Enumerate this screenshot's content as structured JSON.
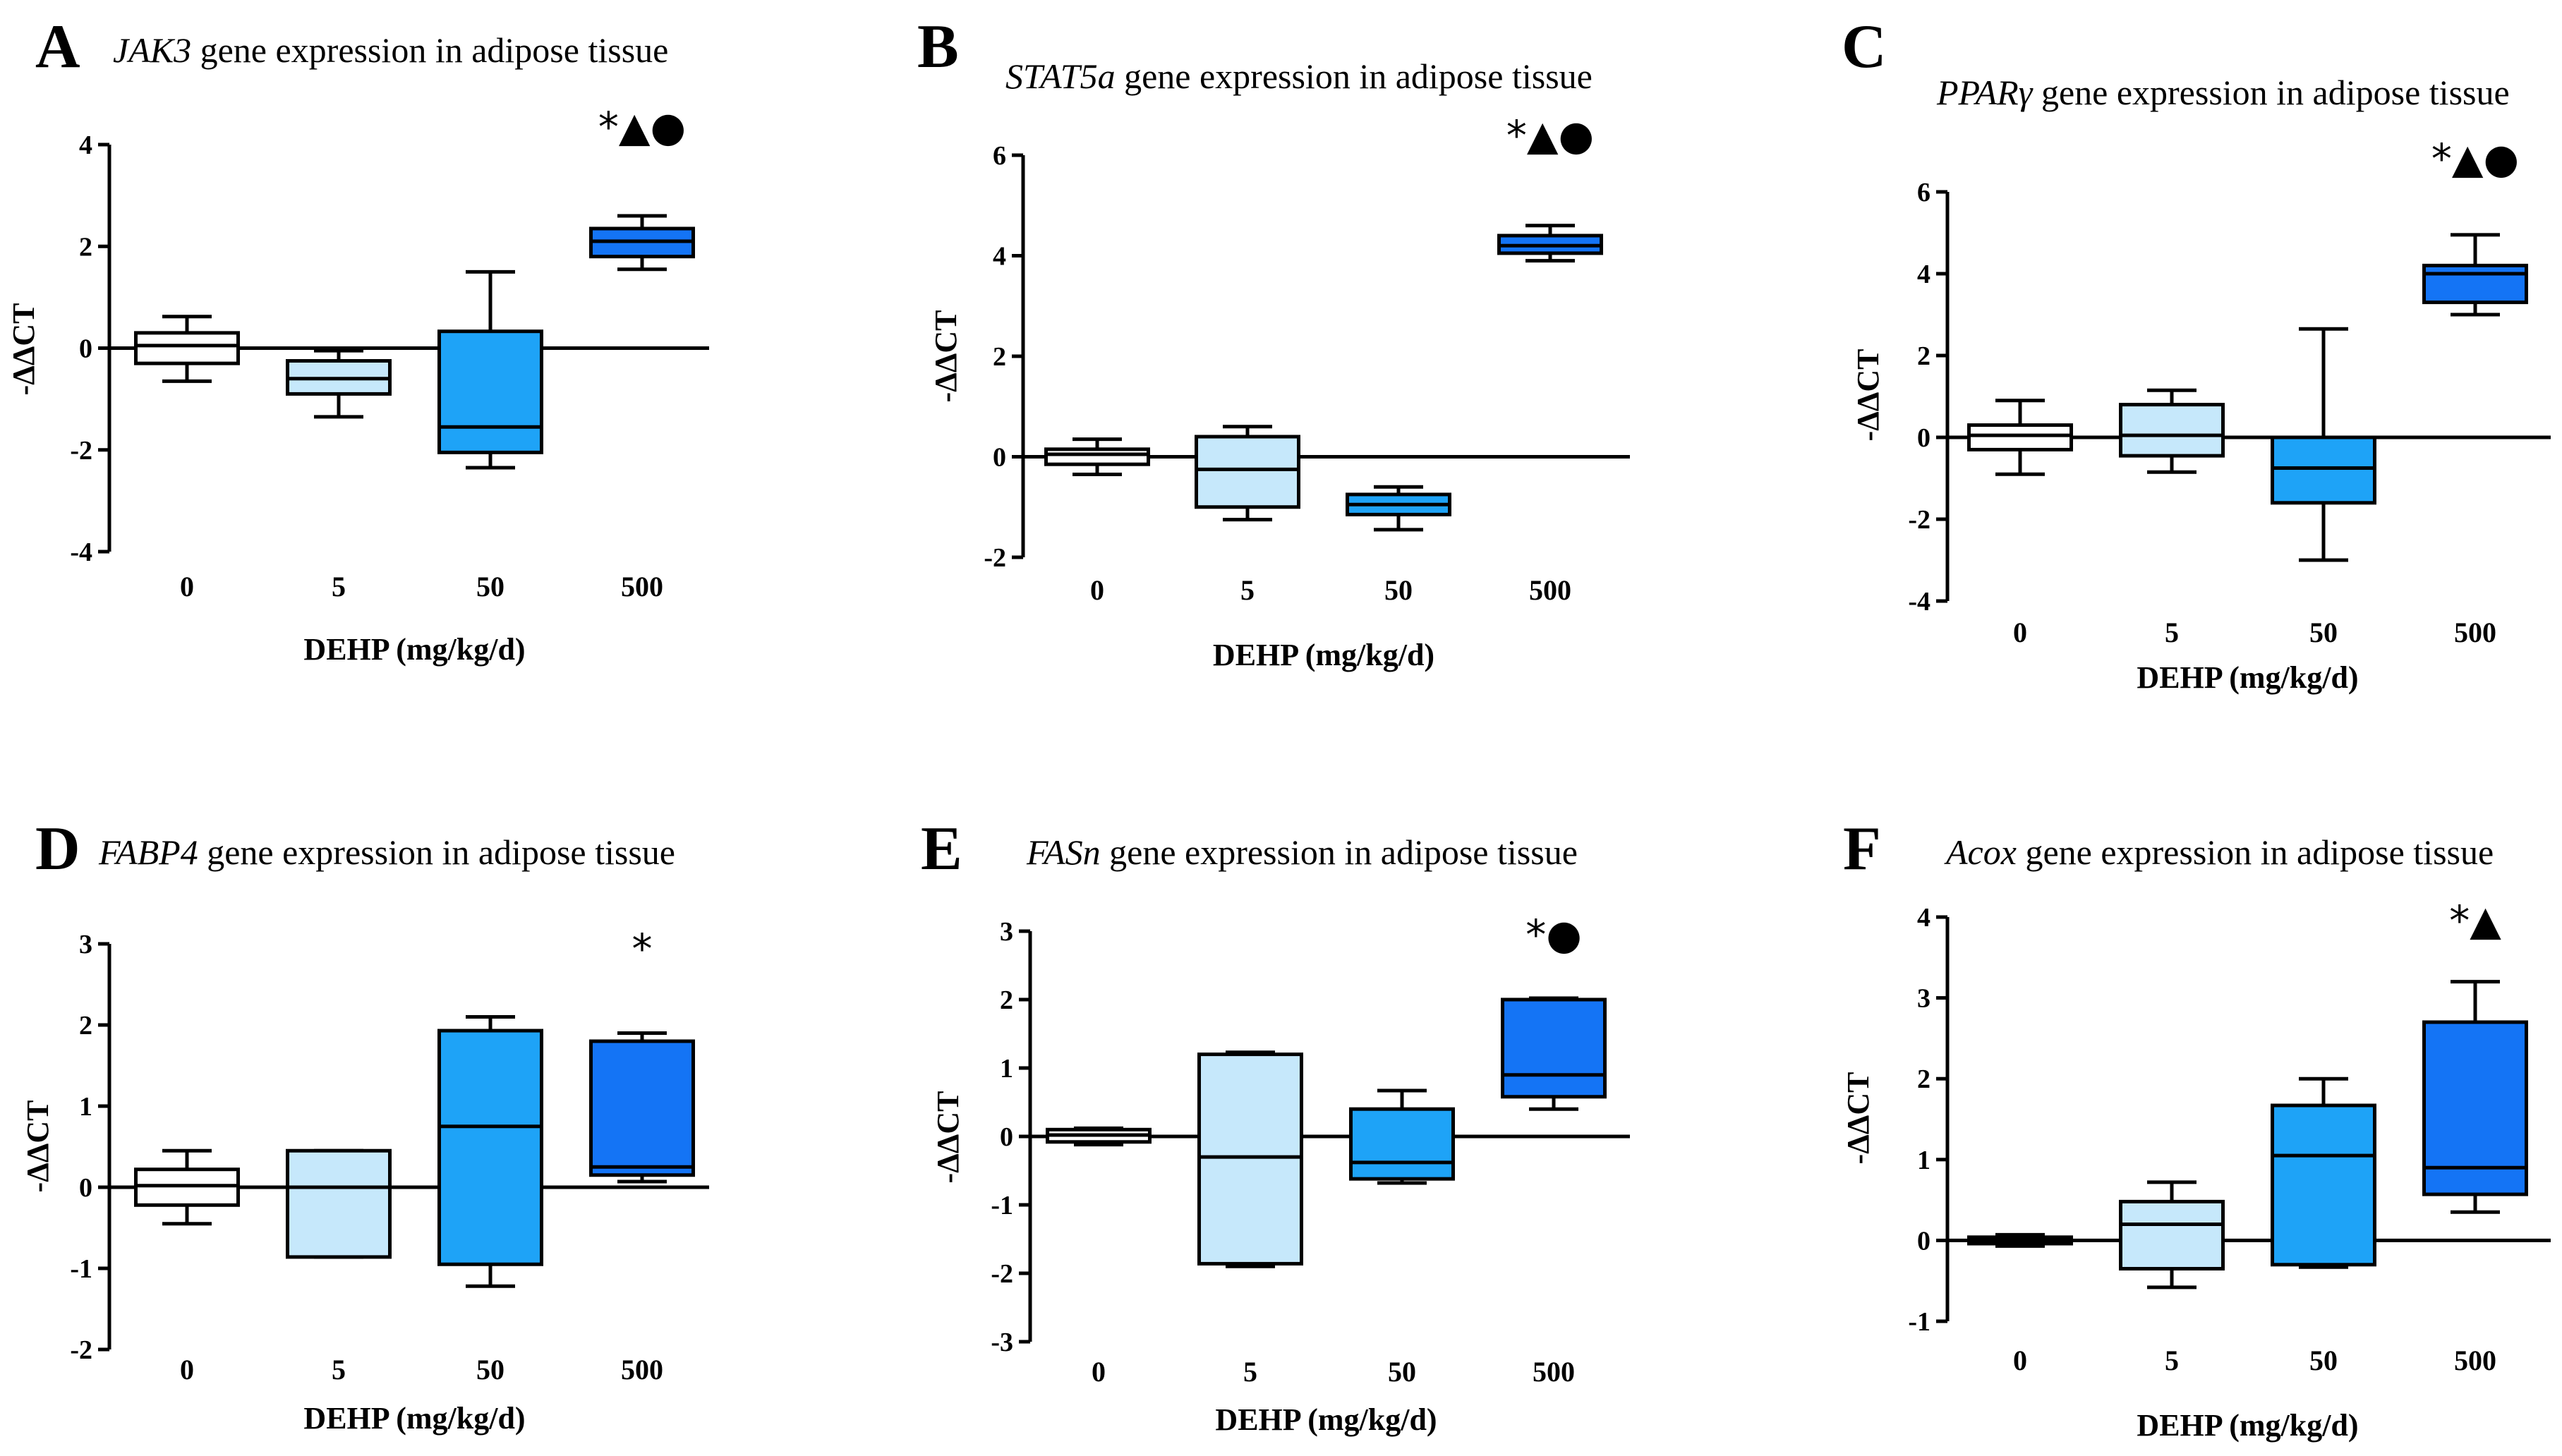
{
  "figure": {
    "colors": [
      "#ffffff",
      "#c6e8fb",
      "#1ea3f7",
      "#1474f5"
    ],
    "x_label": "DEHP (mg/kg/d)",
    "y_label": "-ΔΔCT"
  },
  "chart_data": [
    {
      "panel": "A",
      "type": "box",
      "gene": "JAK3",
      "title_rest": " gene expression in adipose tissue",
      "categories": [
        "0",
        "5",
        "50",
        "500"
      ],
      "ylim": [
        -4,
        4
      ],
      "yticks": [
        -4,
        -2,
        0,
        2,
        4
      ],
      "boxes": [
        {
          "min": -0.65,
          "q1": -0.3,
          "median": 0.05,
          "q3": 0.3,
          "max": 0.62
        },
        {
          "min": -1.35,
          "q1": -0.9,
          "median": -0.6,
          "q3": -0.25,
          "max": -0.05
        },
        {
          "min": -2.35,
          "q1": -2.05,
          "median": -1.55,
          "q3": 0.33,
          "max": 1.5
        },
        {
          "min": 1.55,
          "q1": 1.8,
          "median": 2.1,
          "q3": 2.35,
          "max": 2.6
        }
      ],
      "significance": "*▲●",
      "sig_index": 3
    },
    {
      "panel": "B",
      "type": "box",
      "gene": "STAT5a",
      "title_rest": " gene expression in adipose tissue",
      "categories": [
        "0",
        "5",
        "50",
        "500"
      ],
      "ylim": [
        -2,
        6
      ],
      "yticks": [
        -2,
        0,
        2,
        4,
        6
      ],
      "boxes": [
        {
          "min": -0.35,
          "q1": -0.15,
          "median": 0.05,
          "q3": 0.15,
          "max": 0.35
        },
        {
          "min": -1.25,
          "q1": -1.0,
          "median": -0.25,
          "q3": 0.4,
          "max": 0.6
        },
        {
          "min": -1.45,
          "q1": -1.15,
          "median": -0.95,
          "q3": -0.75,
          "max": -0.6
        },
        {
          "min": 3.9,
          "q1": 4.05,
          "median": 4.2,
          "q3": 4.4,
          "max": 4.6
        }
      ],
      "significance": "*▲●",
      "sig_index": 3
    },
    {
      "panel": "C",
      "type": "box",
      "gene": "PPARγ",
      "title_rest": " gene expression in adipose tissue",
      "categories": [
        "0",
        "5",
        "50",
        "500"
      ],
      "ylim": [
        -4,
        6
      ],
      "yticks": [
        -4,
        -2,
        0,
        2,
        4,
        6
      ],
      "boxes": [
        {
          "min": -0.9,
          "q1": -0.3,
          "median": 0.05,
          "q3": 0.3,
          "max": 0.9
        },
        {
          "min": -0.85,
          "q1": -0.45,
          "median": 0.05,
          "q3": 0.8,
          "max": 1.15
        },
        {
          "min": -3.0,
          "q1": -1.6,
          "median": -0.75,
          "q3": 0.0,
          "max": 2.65
        },
        {
          "min": 3.0,
          "q1": 3.3,
          "median": 4.0,
          "q3": 4.2,
          "max": 4.95
        }
      ],
      "significance": "*▲●",
      "sig_index": 3
    },
    {
      "panel": "D",
      "type": "box",
      "gene": "FABP4",
      "title_rest": " gene expression in adipose tissue",
      "categories": [
        "0",
        "5",
        "50",
        "500"
      ],
      "ylim": [
        -2,
        3
      ],
      "yticks": [
        -2,
        -1,
        0,
        1,
        2,
        3
      ],
      "boxes": [
        {
          "min": -0.45,
          "q1": -0.22,
          "median": 0.02,
          "q3": 0.22,
          "max": 0.45
        },
        {
          "min": -0.86,
          "q1": -0.86,
          "median": 0.0,
          "q3": 0.45,
          "max": 0.45
        },
        {
          "min": -1.22,
          "q1": -0.95,
          "median": 0.75,
          "q3": 1.93,
          "max": 2.1
        },
        {
          "min": 0.07,
          "q1": 0.15,
          "median": 0.25,
          "q3": 1.8,
          "max": 1.9
        }
      ],
      "significance": "*",
      "sig_index": 3
    },
    {
      "panel": "E",
      "type": "box",
      "gene": "FASn",
      "title_rest": " gene expression in adipose tissue",
      "categories": [
        "0",
        "5",
        "50",
        "500"
      ],
      "ylim": [
        -3,
        3
      ],
      "yticks": [
        -3,
        -2,
        -1,
        0,
        1,
        2,
        3
      ],
      "boxes": [
        {
          "min": -0.12,
          "q1": -0.08,
          "median": 0.02,
          "q3": 0.1,
          "max": 0.12
        },
        {
          "min": -1.9,
          "q1": -1.86,
          "median": -0.3,
          "q3": 1.2,
          "max": 1.23
        },
        {
          "min": -0.68,
          "q1": -0.62,
          "median": -0.38,
          "q3": 0.4,
          "max": 0.67
        },
        {
          "min": 0.4,
          "q1": 0.58,
          "median": 0.9,
          "q3": 2.0,
          "max": 2.02
        }
      ],
      "significance": "*●",
      "sig_index": 3
    },
    {
      "panel": "F",
      "type": "box",
      "gene": "Acox",
      "title_rest": " gene expression in adipose tissue",
      "categories": [
        "0",
        "5",
        "50",
        "500"
      ],
      "ylim": [
        -1,
        4
      ],
      "yticks": [
        -1,
        0,
        1,
        2,
        3,
        4
      ],
      "boxes": [
        {
          "min": -0.07,
          "q1": -0.04,
          "median": 0.0,
          "q3": 0.04,
          "max": 0.07
        },
        {
          "min": -0.58,
          "q1": -0.35,
          "median": 0.2,
          "q3": 0.48,
          "max": 0.72
        },
        {
          "min": -0.33,
          "q1": -0.3,
          "median": 1.05,
          "q3": 1.67,
          "max": 2.0
        },
        {
          "min": 0.35,
          "q1": 0.57,
          "median": 0.9,
          "q3": 2.7,
          "max": 3.2
        }
      ],
      "significance": "*▲",
      "sig_index": 3
    }
  ]
}
